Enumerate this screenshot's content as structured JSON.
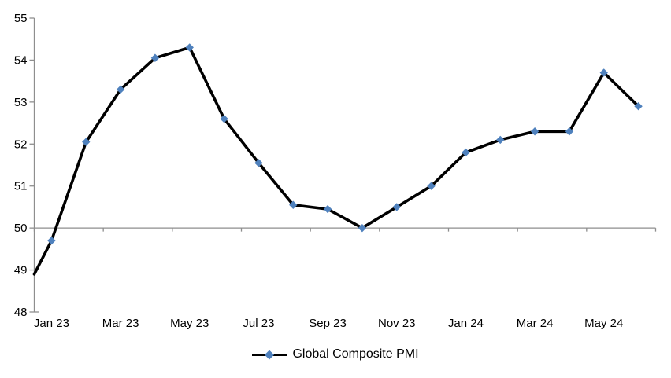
{
  "chart_data": {
    "type": "line",
    "title": "",
    "categories": [
      "Jan 23",
      "Feb 23",
      "Mar 23",
      "Apr 23",
      "May 23",
      "Jun 23",
      "Jul 23",
      "Aug 23",
      "Sep 23",
      "Oct 23",
      "Nov 23",
      "Dec 23",
      "Jan 24",
      "Feb 24",
      "Mar 24",
      "Apr 24",
      "May 24",
      "Jun 24"
    ],
    "series": [
      {
        "name": "Global Composite PMI",
        "values": [
          49.7,
          52.05,
          53.3,
          54.05,
          54.3,
          52.6,
          51.55,
          50.55,
          50.45,
          50.0,
          50.5,
          51.0,
          51.8,
          52.1,
          52.3,
          52.3,
          53.7,
          52.9
        ],
        "lead_in_from_left_axis": 48.9
      }
    ],
    "x_axis": {
      "tick_labels": [
        "Jan 23",
        "Mar 23",
        "May 23",
        "Jul 23",
        "Sep 23",
        "Nov 23",
        "Jan 24",
        "Mar 24",
        "May 24"
      ],
      "tick_interval_months": 2
    },
    "y_axis": {
      "min": 48,
      "max": 55,
      "tick_labels": [
        "48",
        "49",
        "50",
        "51",
        "52",
        "53",
        "54",
        "55"
      ],
      "category_axis_crosses_at": 50
    },
    "legend": {
      "position": "bottom-center",
      "label": "Global Composite PMI"
    },
    "grid": "off",
    "colors": {
      "line": "#000000",
      "marker": "#4F81BD",
      "axis": "#8E8E8E",
      "text": "#000000"
    }
  }
}
